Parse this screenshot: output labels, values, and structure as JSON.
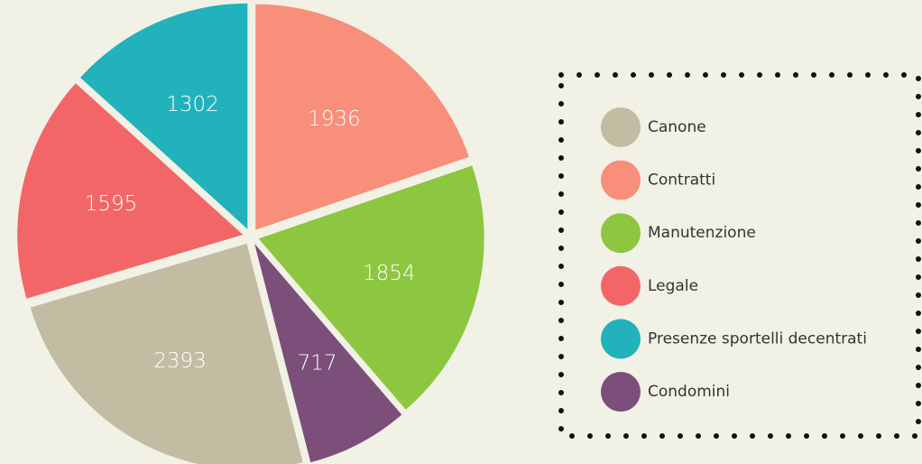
{
  "chart_data": {
    "type": "pie",
    "categories": [
      "Contratti",
      "Manutenzione",
      "Condomini",
      "Canone",
      "Legale",
      "Presenze sportelli decentrati"
    ],
    "values": [
      1936,
      1854,
      717,
      2393,
      1595,
      1302
    ],
    "colors": [
      "#f78f7a",
      "#8dc63f",
      "#7b4f7a",
      "#c2bca2",
      "#f26668",
      "#21b2bb"
    ]
  }
}
